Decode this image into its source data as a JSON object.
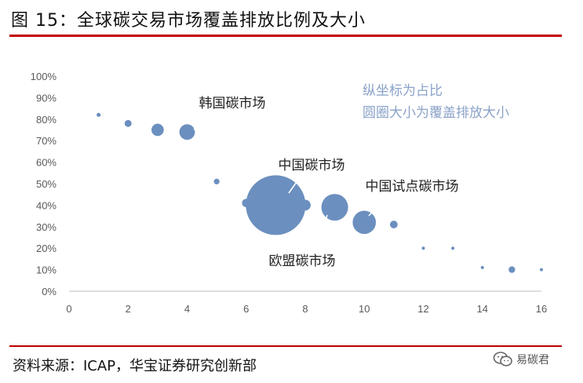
{
  "header": {
    "title": "图 15：全球碳交易市场覆盖排放比例及大小"
  },
  "source": {
    "text": "资料来源：ICAP，华宝证券研究创新部"
  },
  "watermark": {
    "text": "易碳君",
    "icon": "wechat-icon"
  },
  "chart_data": {
    "type": "scatter",
    "title": "",
    "xlabel": "",
    "ylabel": "",
    "xlim": [
      0,
      16
    ],
    "ylim": [
      0,
      1
    ],
    "xticks": [
      "0",
      "2",
      "4",
      "6",
      "8",
      "10",
      "12",
      "14",
      "16"
    ],
    "yticks": [
      "0%",
      "10%",
      "20%",
      "30%",
      "40%",
      "50%",
      "60%",
      "70%",
      "80%",
      "90%",
      "100%"
    ],
    "grid": false,
    "color": "#6b8fbf",
    "points": [
      {
        "x": 1,
        "y": 0.82,
        "size": 0.03
      },
      {
        "x": 2,
        "y": 0.78,
        "size": 0.09
      },
      {
        "x": 3,
        "y": 0.75,
        "size": 0.28
      },
      {
        "x": 4,
        "y": 0.74,
        "size": 0.45
      },
      {
        "x": 5,
        "y": 0.51,
        "size": 0.06
      },
      {
        "x": 6,
        "y": 0.41,
        "size": 0.13
      },
      {
        "x": 7,
        "y": 0.4,
        "size": 6.6
      },
      {
        "x": 8,
        "y": 0.4,
        "size": 0.22
      },
      {
        "x": 9,
        "y": 0.39,
        "size": 1.32
      },
      {
        "x": 10,
        "y": 0.32,
        "size": 1.0
      },
      {
        "x": 11,
        "y": 0.31,
        "size": 0.11
      },
      {
        "x": 12,
        "y": 0.2,
        "size": 0.005
      },
      {
        "x": 13,
        "y": 0.2,
        "size": 0.008
      },
      {
        "x": 14,
        "y": 0.11,
        "size": 0.005
      },
      {
        "x": 15,
        "y": 0.1,
        "size": 0.08
      },
      {
        "x": 16,
        "y": 0.1,
        "size": 0.004
      }
    ],
    "annotations": [
      {
        "text": "韩国碳市场",
        "target_x": 4,
        "target_y": 0.74,
        "color": "#222222"
      },
      {
        "text": "中国碳市场",
        "target_x": 7,
        "target_y": 0.4,
        "color": "#222222"
      },
      {
        "text": "中国试点碳市场",
        "target_x": 10,
        "target_y": 0.32,
        "color": "#222222"
      },
      {
        "text": "欧盟碳市场",
        "target_x": 9,
        "target_y": 0.39,
        "color": "#222222"
      }
    ],
    "notes": [
      "纵坐标为占比",
      "圆圈大小为覆盖排放大小"
    ],
    "notes_color": "#8aa2c8",
    "axis_label_color": "#595959"
  }
}
